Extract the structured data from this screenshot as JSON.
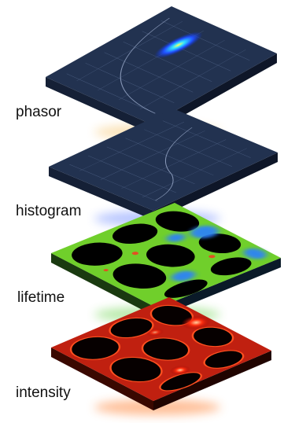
{
  "layers": [
    {
      "label": "phasor"
    },
    {
      "label": "histogram"
    },
    {
      "label": "lifetime"
    },
    {
      "label": "intensity"
    }
  ]
}
